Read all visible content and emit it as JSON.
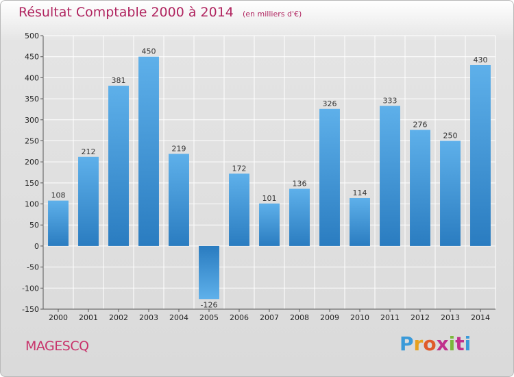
{
  "title": "Résultat Comptable 2000 à 2014",
  "subtitle": "(en milliers d'€)",
  "commune": "MAGESCQ",
  "logo": {
    "letters": [
      "P",
      "r",
      "o",
      "x",
      "i",
      "t",
      "i"
    ]
  },
  "colors": {
    "title": "#b0245f",
    "bar_light": "#5eb0ea",
    "bar_dark": "#2a7cc0",
    "axis": "#555555",
    "grid": "#ffffff"
  },
  "chart_data": {
    "type": "bar",
    "categories": [
      "2000",
      "2001",
      "2002",
      "2003",
      "2004",
      "2005",
      "2006",
      "2007",
      "2008",
      "2009",
      "2010",
      "2011",
      "2012",
      "2013",
      "2014"
    ],
    "values": [
      108,
      212,
      381,
      450,
      219,
      -126,
      172,
      101,
      136,
      326,
      114,
      333,
      276,
      250,
      430
    ],
    "ylim": [
      -150,
      500
    ],
    "yticks": [
      500,
      450,
      400,
      350,
      300,
      250,
      200,
      150,
      100,
      50,
      0,
      -50,
      -100,
      -150
    ],
    "ytick_labels": [
      "500",
      "450",
      "400",
      "350",
      "300",
      "250",
      "200",
      "150",
      "100",
      "50",
      "0",
      "-50",
      "-100",
      "-150"
    ],
    "grid": true,
    "xlabel": "",
    "ylabel": ""
  }
}
